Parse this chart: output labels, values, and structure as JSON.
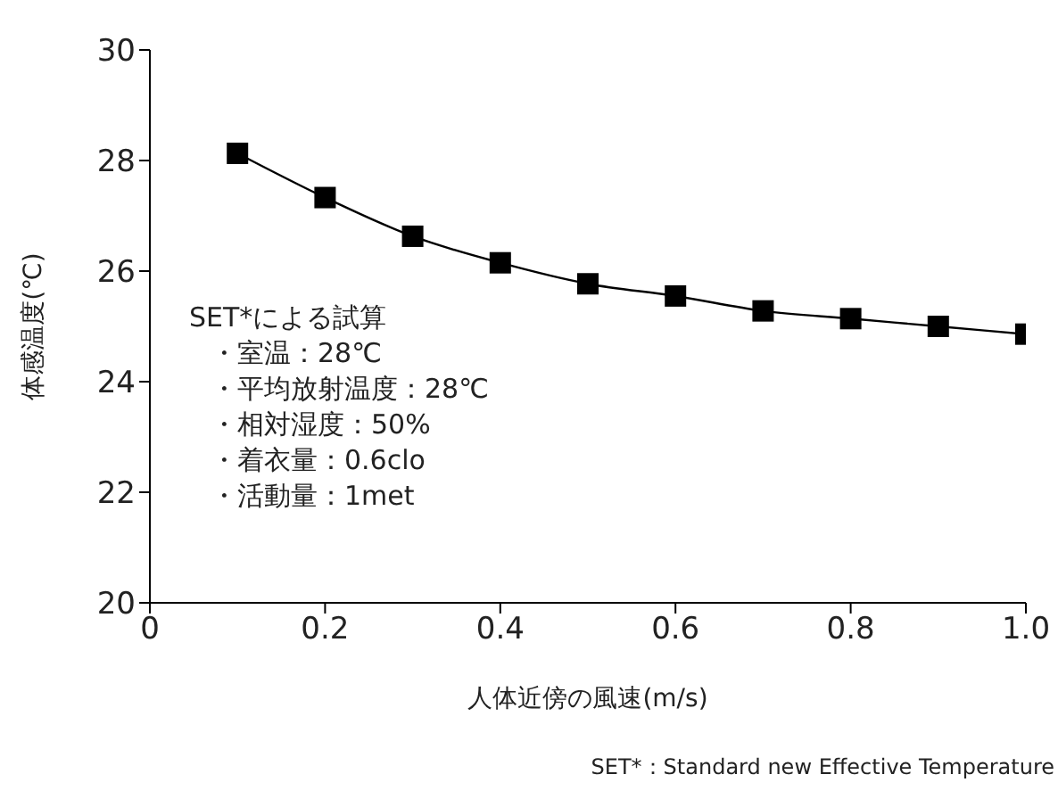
{
  "chart_data": {
    "type": "line",
    "x": [
      0.1,
      0.2,
      0.3,
      0.4,
      0.5,
      0.6,
      0.7,
      0.8,
      0.9,
      1.0
    ],
    "series": [
      {
        "color": "#000000",
        "values": [
          28.13,
          27.33,
          26.63,
          26.15,
          25.77,
          25.55,
          25.28,
          25.14,
          25.0,
          24.86
        ]
      }
    ],
    "xlabel": "人体近傍の風速(m/s)",
    "ylabel": "体感温度(℃)",
    "xlim": [
      0,
      1.0
    ],
    "xticks": [
      0,
      0.2,
      0.4,
      0.6,
      0.8,
      {
        "value": 1.0,
        "label": "1.0"
      }
    ],
    "ylim": [
      20,
      30
    ],
    "yticks": [
      20,
      22,
      24,
      26,
      28,
      30
    ],
    "marker": "square",
    "line_style": "solid",
    "grid": false,
    "legend": false,
    "annotations": [
      "SET*による試算",
      "・室温：28℃",
      "・平均放射温度：28℃",
      "・相対湿度：50%",
      "・着衣量：0.6clo",
      "・活動量：1met",
      "SET*：Standard new Effective Temperature"
    ]
  }
}
